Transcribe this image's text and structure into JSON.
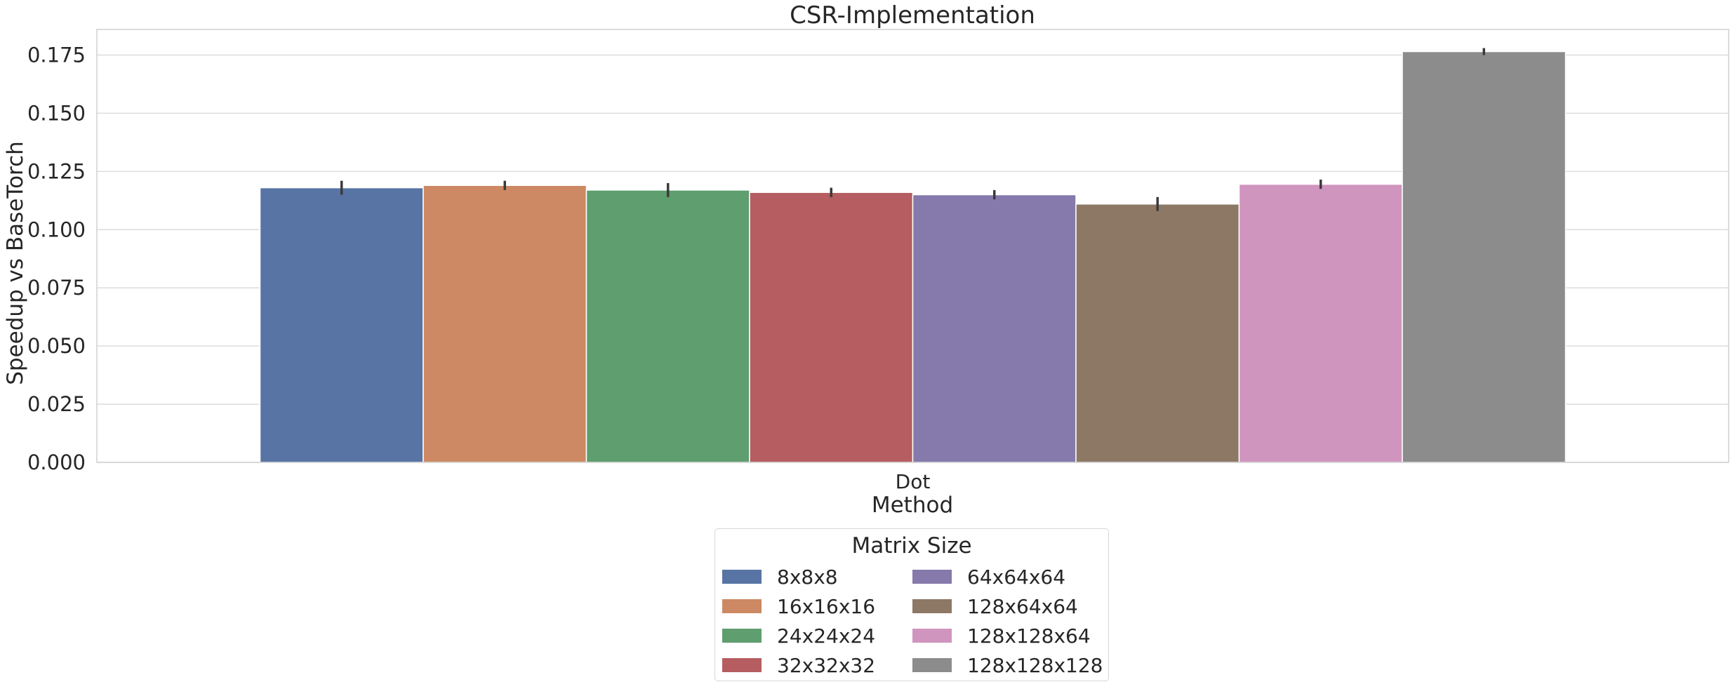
{
  "chart_data": {
    "type": "bar",
    "title": "CSR-Implementation",
    "xlabel": "Method",
    "ylabel": "Speedup vs BaseTorch",
    "categories": [
      "Dot"
    ],
    "ylim": [
      0,
      0.186
    ],
    "yticks": [
      "0.000",
      "0.025",
      "0.050",
      "0.075",
      "0.100",
      "0.125",
      "0.150",
      "0.175"
    ],
    "grid": true,
    "legend": {
      "title": "Matrix Size",
      "placement": "bottom-center",
      "columns": 2
    },
    "series": [
      {
        "name": "8x8x8",
        "values": [
          0.118
        ],
        "error": [
          0.003
        ],
        "color": "#5874a4"
      },
      {
        "name": "16x16x16",
        "values": [
          0.119
        ],
        "error": [
          0.002
        ],
        "color": "#cc8963"
      },
      {
        "name": "24x24x24",
        "values": [
          0.117
        ],
        "error": [
          0.003
        ],
        "color": "#5f9e6e"
      },
      {
        "name": "32x32x32",
        "values": [
          0.116
        ],
        "error": [
          0.002
        ],
        "color": "#b55d60"
      },
      {
        "name": "64x64x64",
        "values": [
          0.115
        ],
        "error": [
          0.002
        ],
        "color": "#857aab"
      },
      {
        "name": "128x64x64",
        "values": [
          0.111
        ],
        "error": [
          0.003
        ],
        "color": "#8d7866"
      },
      {
        "name": "128x128x64",
        "values": [
          0.1195
        ],
        "error": [
          0.002
        ],
        "color": "#d095bf"
      },
      {
        "name": "128x128x128",
        "values": [
          0.1765
        ],
        "error": [
          0.0015
        ],
        "color": "#8c8c8c"
      }
    ]
  }
}
